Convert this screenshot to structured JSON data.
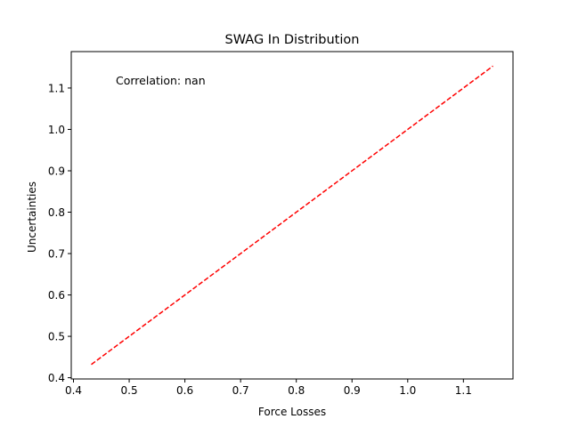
{
  "chart_data": {
    "type": "line",
    "title": "SWAG In Distribution",
    "xlabel": "Force Losses",
    "ylabel": "Uncertainties",
    "xlim": [
      0.396,
      1.189
    ],
    "ylim": [
      0.397,
      1.188
    ],
    "xticks": [
      0.4,
      0.5,
      0.6,
      0.7,
      0.8,
      0.9,
      1.0,
      1.1
    ],
    "xtick_labels": [
      "0.4",
      "0.5",
      "0.6",
      "0.7",
      "0.8",
      "0.9",
      "1.0",
      "1.1"
    ],
    "yticks": [
      0.4,
      0.5,
      0.6,
      0.7,
      0.8,
      0.9,
      1.0,
      1.1
    ],
    "ytick_labels": [
      "0.4",
      "0.5",
      "0.6",
      "0.7",
      "0.8",
      "0.9",
      "1.0",
      "1.1"
    ],
    "grid": false,
    "series": [
      {
        "style": "dashed",
        "color": "#ff0000",
        "x": [
          0.432,
          1.153
        ],
        "y": [
          0.432,
          1.153
        ]
      }
    ],
    "annotation": "Correlation: nan"
  }
}
